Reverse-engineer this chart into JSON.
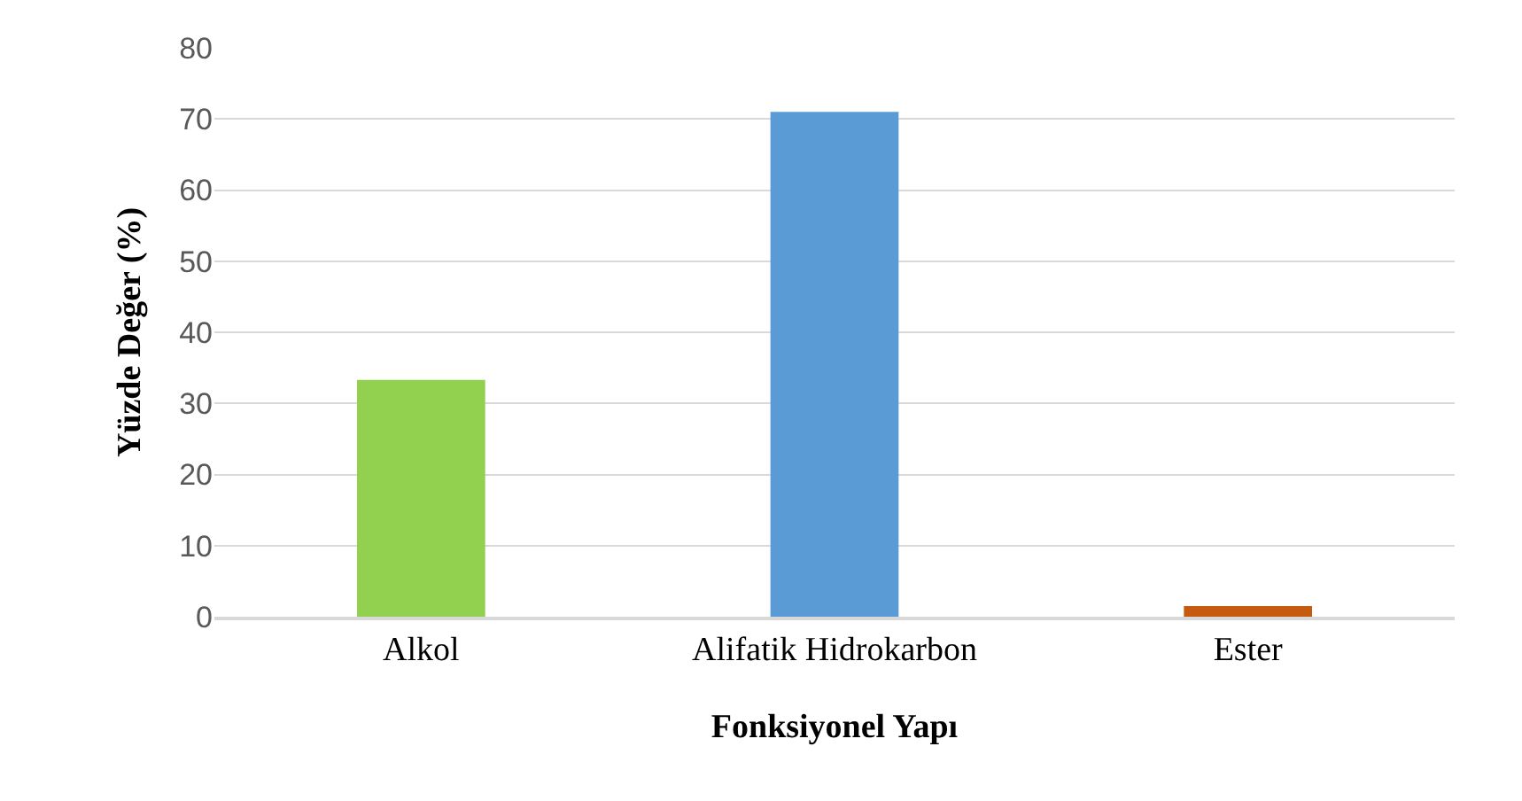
{
  "chart_data": {
    "type": "bar",
    "xlabel": "Fonksiyonel Yapı",
    "ylabel": "Yüzde Değer (%)",
    "categories": [
      "Alkol",
      "Alifatik Hidrokarbon",
      "Ester"
    ],
    "values": [
      33.3,
      71,
      1.5
    ],
    "colors": [
      "#92d050",
      "#5b9bd5",
      "#c55a11"
    ],
    "ylim": [
      0,
      80
    ],
    "yticks": [
      0,
      10,
      20,
      30,
      40,
      50,
      60,
      70,
      80
    ],
    "grid": "y"
  }
}
